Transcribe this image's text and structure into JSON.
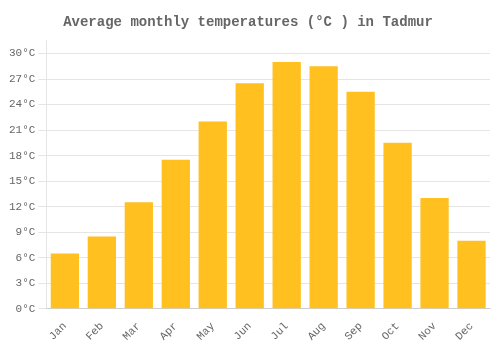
{
  "chart_data": {
    "type": "bar",
    "title": "Average monthly temperatures (°C ) in Tadmur",
    "categories": [
      "Jan",
      "Feb",
      "Mar",
      "Apr",
      "May",
      "Jun",
      "Jul",
      "Aug",
      "Sep",
      "Oct",
      "Nov",
      "Dec"
    ],
    "values": [
      6.5,
      8.5,
      12.5,
      17.5,
      22.0,
      26.5,
      29.0,
      28.5,
      25.5,
      19.5,
      13.0,
      8.0
    ],
    "color": "#FFC020",
    "ylim": [
      0,
      31.5
    ],
    "yticks": [
      {
        "value": 0,
        "label": "0°C"
      },
      {
        "value": 3,
        "label": "3°C"
      },
      {
        "value": 6,
        "label": "6°C"
      },
      {
        "value": 9,
        "label": "9°C"
      },
      {
        "value": 12,
        "label": "12°C"
      },
      {
        "value": 15,
        "label": "15°C"
      },
      {
        "value": 18,
        "label": "18°C"
      },
      {
        "value": 21,
        "label": "21°C"
      },
      {
        "value": 24,
        "label": "24°C"
      },
      {
        "value": 27,
        "label": "27°C"
      },
      {
        "value": 30,
        "label": "30°C"
      }
    ],
    "grid": true
  }
}
